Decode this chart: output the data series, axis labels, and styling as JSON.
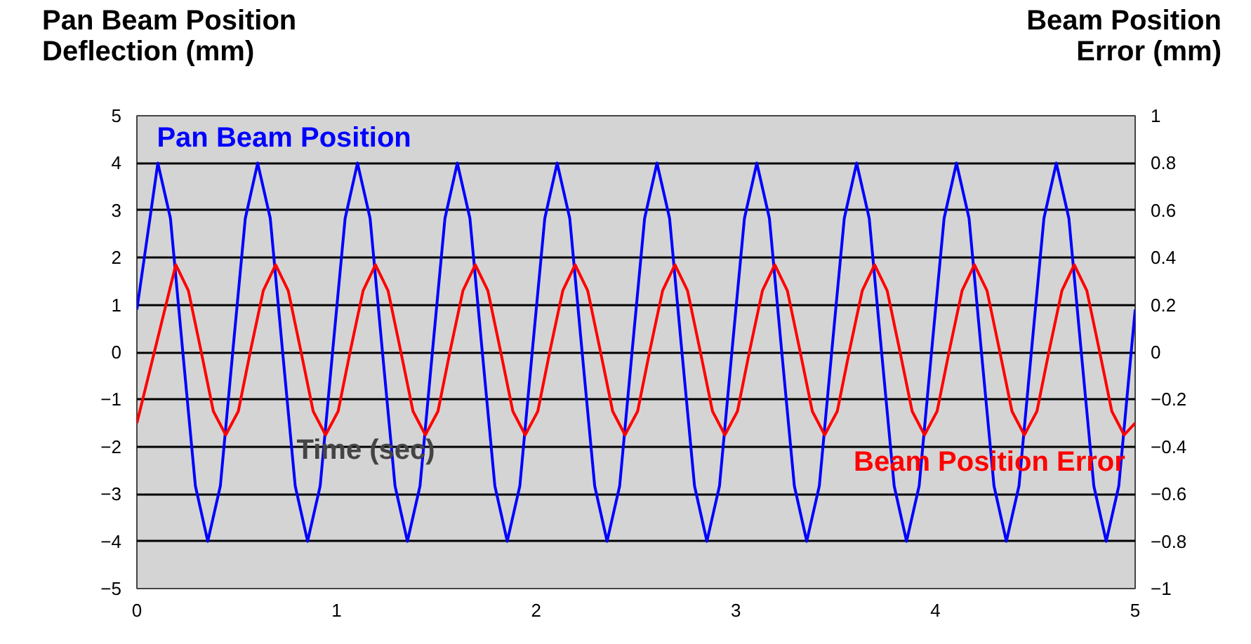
{
  "chart_data": {
    "type": "line",
    "ylabel": "Pan Beam Position\nDeflection (mm)",
    "y2label": "Beam Position\nError (mm)",
    "xlabel": "Time (sec)",
    "xlim": [
      0,
      5
    ],
    "xticks": [
      0,
      1,
      2,
      3,
      4,
      5
    ],
    "ylim": [
      -5,
      5
    ],
    "yticks": [
      {
        "value": -5,
        "label": "−5"
      },
      {
        "value": -4,
        "label": "−4"
      },
      {
        "value": -3,
        "label": "−3"
      },
      {
        "value": -2,
        "label": "−2"
      },
      {
        "value": -1,
        "label": "−1"
      },
      0,
      1,
      2,
      3,
      4,
      5
    ],
    "y2lim": [
      -1,
      1
    ],
    "y2ticks": [
      {
        "value": -1,
        "label": "−1"
      },
      {
        "value": -0.8,
        "label": "−0.8"
      },
      {
        "value": -0.6,
        "label": "−0.6"
      },
      {
        "value": -0.4,
        "label": "−0.4"
      },
      {
        "value": -0.2,
        "label": "−0.2"
      },
      0,
      0.2,
      0.4,
      0.6,
      0.8,
      1
    ],
    "grid": "y",
    "legend": false,
    "line_style": "solid",
    "marker": "none",
    "series": [
      {
        "name": "Pan Beam Position",
        "color": "#0000ff",
        "x": [
          0,
          0.105,
          0.168,
          0.23,
          0.293,
          0.355,
          0.418,
          0.48,
          0.543,
          0.605,
          0.668,
          0.73,
          0.793,
          0.855,
          0.918,
          0.98,
          1.043,
          1.105,
          1.168,
          1.23,
          1.293,
          1.355,
          1.418,
          1.48,
          1.543,
          1.605,
          1.668,
          1.73,
          1.793,
          1.855,
          1.918,
          1.98,
          2.043,
          2.105,
          2.168,
          2.23,
          2.293,
          2.355,
          2.418,
          2.48,
          2.543,
          2.605,
          2.668,
          2.73,
          2.793,
          2.855,
          2.918,
          2.98,
          3.043,
          3.105,
          3.168,
          3.23,
          3.293,
          3.355,
          3.418,
          3.48,
          3.543,
          3.605,
          3.668,
          3.73,
          3.793,
          3.855,
          3.918,
          3.98,
          4.043,
          4.105,
          4.168,
          4.23,
          4.293,
          4.355,
          4.418,
          4.48,
          4.543,
          4.605,
          4.668,
          4.73,
          4.793,
          4.855,
          4.918,
          4.98,
          5
        ],
        "values": [
          0.9,
          4,
          2.83,
          0,
          -2.83,
          -4,
          -2.83,
          0,
          2.83,
          4,
          2.83,
          0,
          -2.83,
          -4,
          -2.83,
          0,
          2.83,
          4,
          2.83,
          0,
          -2.83,
          -4,
          -2.83,
          0,
          2.83,
          4,
          2.83,
          0,
          -2.83,
          -4,
          -2.83,
          0,
          2.83,
          4,
          2.83,
          0,
          -2.83,
          -4,
          -2.83,
          0,
          2.83,
          4,
          2.83,
          0,
          -2.83,
          -4,
          -2.83,
          0,
          2.83,
          4,
          2.83,
          0,
          -2.83,
          -4,
          -2.83,
          0,
          2.83,
          4,
          2.83,
          0,
          -2.83,
          -4,
          -2.83,
          0,
          2.83,
          4,
          2.83,
          0,
          -2.83,
          -4,
          -2.83,
          0,
          2.83,
          4,
          2.83,
          0,
          -2.83,
          -4,
          -2.83,
          0,
          0.9
        ]
      },
      {
        "name": "Beam Position Error",
        "color": "#ff0000",
        "axis": "y2",
        "x": [
          0,
          0.195,
          0.258,
          0.32,
          0.383,
          0.445,
          0.508,
          0.57,
          0.633,
          0.695,
          0.758,
          0.82,
          0.883,
          0.945,
          1.008,
          1.07,
          1.133,
          1.195,
          1.258,
          1.32,
          1.383,
          1.445,
          1.508,
          1.57,
          1.633,
          1.695,
          1.758,
          1.82,
          1.883,
          1.945,
          2.008,
          2.07,
          2.133,
          2.195,
          2.258,
          2.32,
          2.383,
          2.445,
          2.508,
          2.57,
          2.633,
          2.695,
          2.758,
          2.82,
          2.883,
          2.945,
          3.008,
          3.07,
          3.133,
          3.195,
          3.258,
          3.32,
          3.383,
          3.445,
          3.508,
          3.57,
          3.633,
          3.695,
          3.758,
          3.82,
          3.883,
          3.945,
          4.008,
          4.07,
          4.133,
          4.195,
          4.258,
          4.32,
          4.383,
          4.445,
          4.508,
          4.57,
          4.633,
          4.695,
          4.758,
          4.82,
          4.883,
          4.945,
          5
        ],
        "values": [
          -0.3,
          0.37,
          0.26,
          0.01,
          -0.25,
          -0.35,
          -0.25,
          0.01,
          0.26,
          0.37,
          0.26,
          0.01,
          -0.25,
          -0.35,
          -0.25,
          0.01,
          0.26,
          0.37,
          0.26,
          0.01,
          -0.25,
          -0.35,
          -0.25,
          0.01,
          0.26,
          0.37,
          0.26,
          0.01,
          -0.25,
          -0.35,
          -0.25,
          0.01,
          0.26,
          0.37,
          0.26,
          0.01,
          -0.25,
          -0.35,
          -0.25,
          0.01,
          0.26,
          0.37,
          0.26,
          0.01,
          -0.25,
          -0.35,
          -0.25,
          0.01,
          0.26,
          0.37,
          0.26,
          0.01,
          -0.25,
          -0.35,
          -0.25,
          0.01,
          0.26,
          0.37,
          0.26,
          0.01,
          -0.25,
          -0.35,
          -0.25,
          0.01,
          0.26,
          0.37,
          0.26,
          0.01,
          -0.25,
          -0.35,
          -0.25,
          0.01,
          0.26,
          0.37,
          0.26,
          0.01,
          -0.25,
          -0.35,
          -0.3
        ]
      }
    ]
  }
}
